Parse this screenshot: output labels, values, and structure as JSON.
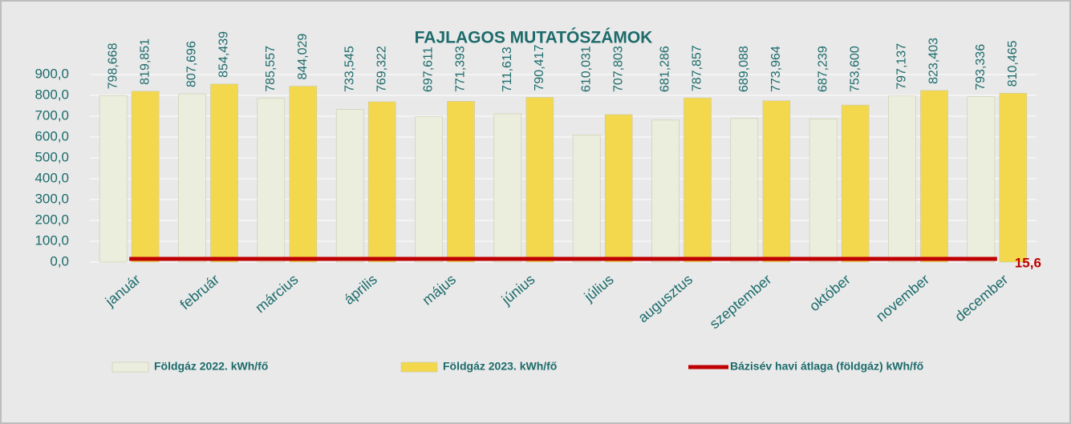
{
  "chart_data": {
    "type": "bar",
    "title": "FAJLAGOS MUTATÓSZÁMOK",
    "categories": [
      "január",
      "február",
      "március",
      "április",
      "május",
      "június",
      "július",
      "augusztus",
      "szeptember",
      "október",
      "november",
      "december"
    ],
    "series": [
      {
        "name": "Földgáz 2022. kWh/fő",
        "color": "#eceedd",
        "values": [
          798.668,
          807.696,
          785.557,
          733.545,
          697.611,
          711.613,
          610.031,
          681.286,
          689.088,
          687.239,
          797.137,
          793.336
        ],
        "value_labels": [
          "798,668",
          "807,696",
          "785,557",
          "733,545",
          "697,611",
          "711,613",
          "610,031",
          "681,286",
          "689,088",
          "687,239",
          "797,137",
          "793,336"
        ]
      },
      {
        "name": "Földgáz 2023. kWh/fő",
        "color": "#f3d84e",
        "values": [
          819.851,
          854.439,
          844.029,
          769.322,
          771.393,
          790.417,
          707.803,
          787.857,
          773.964,
          753.6,
          823.403,
          810.465
        ],
        "value_labels": [
          "819,851",
          "854,439",
          "844,029",
          "769,322",
          "771,393",
          "790,417",
          "707,803",
          "787,857",
          "773,964",
          "753,600",
          "823,403",
          "810,465"
        ]
      },
      {
        "name": "Bázisév havi átlaga (földgáz) kWh/fő",
        "color": "#c00000",
        "type": "line",
        "values": [
          15.6,
          15.6,
          15.6,
          15.6,
          15.6,
          15.6,
          15.6,
          15.6,
          15.6,
          15.6,
          15.6,
          15.6
        ],
        "value_labels": [
          null,
          null,
          null,
          null,
          null,
          null,
          null,
          null,
          null,
          null,
          null,
          "15,6"
        ]
      }
    ],
    "ylim": [
      0,
      900
    ],
    "yticks": [
      {
        "value": 0,
        "label": "0,0"
      },
      {
        "value": 100,
        "label": "100,0"
      },
      {
        "value": 200,
        "label": "200,0"
      },
      {
        "value": 300,
        "label": "300,0"
      },
      {
        "value": 400,
        "label": "400,0"
      },
      {
        "value": 500,
        "label": "500,0"
      },
      {
        "value": 600,
        "label": "600,0"
      },
      {
        "value": 700,
        "label": "700,0"
      },
      {
        "value": 800,
        "label": "800,0"
      },
      {
        "value": 900,
        "label": "900,0"
      }
    ],
    "grid": true
  }
}
